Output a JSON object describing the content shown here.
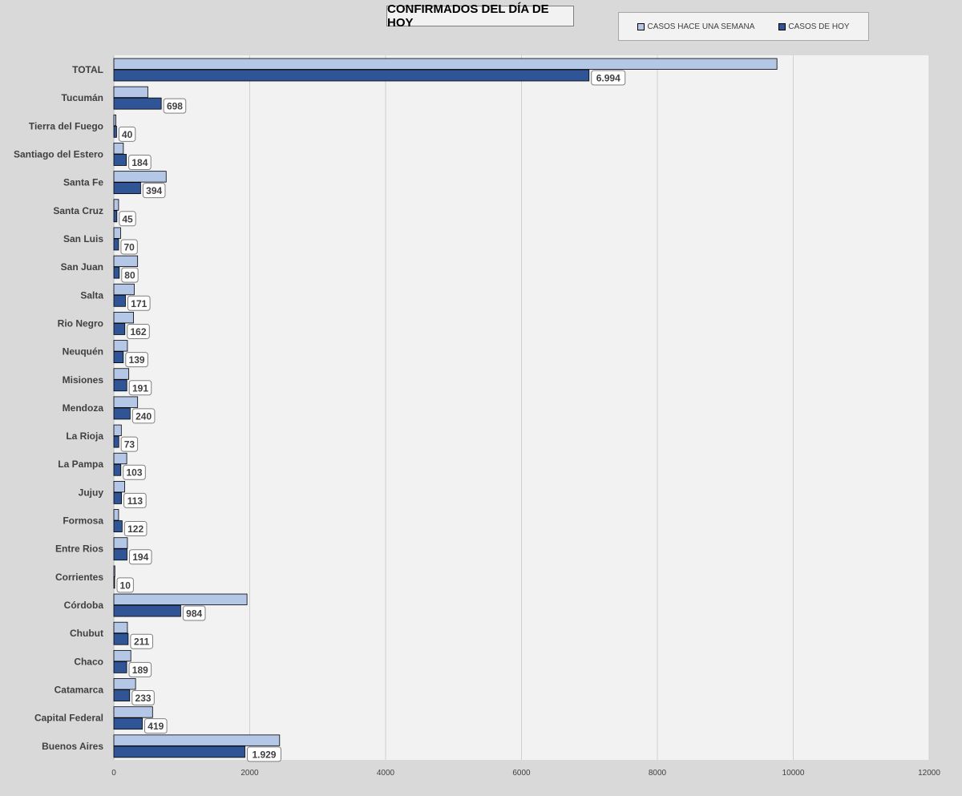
{
  "chart_data": {
    "type": "bar",
    "orientation": "horizontal",
    "title": "CONFIRMADOS DEL DÍA DE HOY",
    "categories": [
      "TOTAL",
      "Tucumán",
      "Tierra del Fuego",
      "Santiago del Estero",
      "Santa Fe",
      "Santa Cruz",
      "San Luis",
      "San Juan",
      "Salta",
      "Rio Negro",
      "Neuquén",
      "Misiones",
      "Mendoza",
      "La Rioja",
      "La Pampa",
      "Jujuy",
      "Formosa",
      "Entre Rios",
      "Corrientes",
      "Córdoba",
      "Chubut",
      "Chaco",
      "Catamarca",
      "Capital Federal",
      "Buenos Aires"
    ],
    "series": [
      {
        "name": "CASOS HACE UNA SEMANA",
        "color": "#b4c7e7",
        "values": [
          9760,
          500,
          30,
          140,
          770,
          70,
          100,
          350,
          300,
          290,
          200,
          220,
          350,
          110,
          190,
          160,
          70,
          200,
          15,
          1960,
          200,
          250,
          320,
          570,
          2440
        ]
      },
      {
        "name": "CASOS DE HOY",
        "color": "#2f5597",
        "values": [
          6994,
          698,
          40,
          184,
          394,
          45,
          70,
          80,
          171,
          162,
          139,
          191,
          240,
          73,
          103,
          113,
          122,
          194,
          10,
          984,
          211,
          189,
          233,
          419,
          1929
        ],
        "labels": [
          "6.994",
          "698",
          "40",
          "184",
          "394",
          "45",
          "70",
          "80",
          "171",
          "162",
          "139",
          "191",
          "240",
          "73",
          "103",
          "113",
          "122",
          "194",
          "10",
          "984",
          "211",
          "189",
          "233",
          "419",
          "1.929"
        ]
      }
    ],
    "xlim": [
      0,
      12000
    ],
    "xticks": [
      "0",
      "2000",
      "4000",
      "6000",
      "8000",
      "10000",
      "12000"
    ],
    "grid": true,
    "legend_position": "top-right"
  }
}
